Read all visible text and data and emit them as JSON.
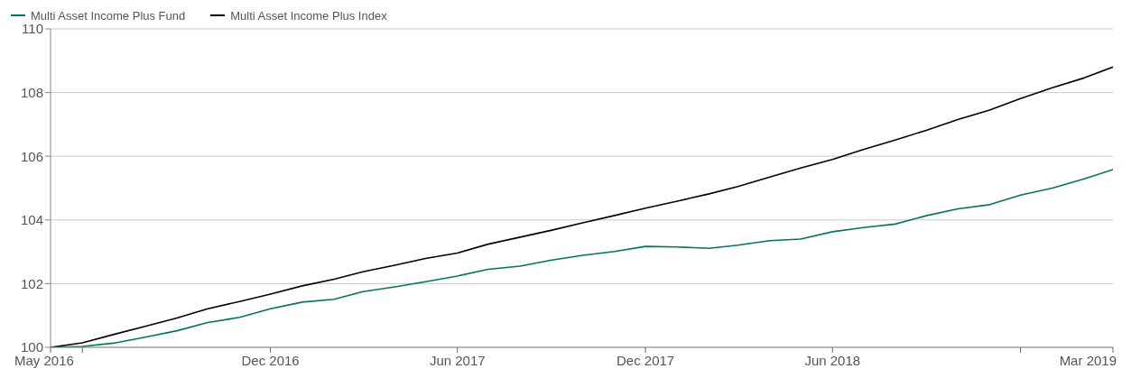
{
  "chart_data": {
    "type": "line",
    "x": [
      "2016-05",
      "2016-06",
      "2016-07",
      "2016-08",
      "2016-09",
      "2016-10",
      "2016-11",
      "2016-12",
      "2017-01",
      "2017-02",
      "2017-03",
      "2017-04",
      "2017-05",
      "2017-06",
      "2017-07",
      "2017-08",
      "2017-09",
      "2017-10",
      "2017-11",
      "2017-12",
      "2018-01",
      "2018-02",
      "2018-03",
      "2018-04",
      "2018-05",
      "2018-06",
      "2018-07",
      "2018-08",
      "2018-09",
      "2018-10",
      "2018-11",
      "2018-12",
      "2019-01",
      "2019-02",
      "2019-03"
    ],
    "series": [
      {
        "name": "Multi Asset Income Plus Fund",
        "color": "#007563",
        "values": [
          100,
          100.03,
          100.13,
          100.32,
          100.52,
          100.78,
          100.94,
          101.21,
          101.42,
          101.51,
          101.75,
          101.9,
          102.06,
          102.24,
          102.45,
          102.55,
          102.74,
          102.89,
          103.01,
          103.17,
          103.15,
          103.11,
          103.21,
          103.35,
          103.4,
          103.63,
          103.76,
          103.87,
          104.14,
          104.35,
          104.48,
          104.78,
          105.0,
          105.29,
          105.58
        ]
      },
      {
        "name": "Multi Asset Income Plus Index",
        "color": "#000000",
        "values": [
          100,
          100.14,
          100.4,
          100.66,
          100.92,
          101.21,
          101.44,
          101.67,
          101.93,
          102.14,
          102.37,
          102.58,
          102.79,
          102.96,
          103.24,
          103.46,
          103.68,
          103.91,
          104.14,
          104.37,
          104.59,
          104.82,
          105.05,
          105.35,
          105.63,
          105.9,
          106.21,
          106.51,
          106.82,
          107.15,
          107.45,
          107.81,
          108.15,
          108.46,
          108.8
        ]
      }
    ],
    "xlim": [
      "2016-05",
      "2019-03"
    ],
    "xticks": [
      {
        "value": "2016-05",
        "label": "May 2016"
      },
      {
        "value": "2016-06",
        "label": null
      },
      {
        "value": "2016-12",
        "label": "Dec 2016"
      },
      {
        "value": "2017-06",
        "label": "Jun 2017"
      },
      {
        "value": "2017-12",
        "label": "Dec 2017"
      },
      {
        "value": "2018-06",
        "label": "Jun 2018"
      },
      {
        "value": "2018-12",
        "label": null
      },
      {
        "value": "2019-03",
        "label": "Mar 2019"
      }
    ],
    "ylim": [
      100,
      110
    ],
    "yticks": [
      100,
      102,
      104,
      106,
      108,
      110
    ],
    "grid": "y",
    "legend": "top left",
    "marker": "none",
    "line_style": "solid"
  }
}
